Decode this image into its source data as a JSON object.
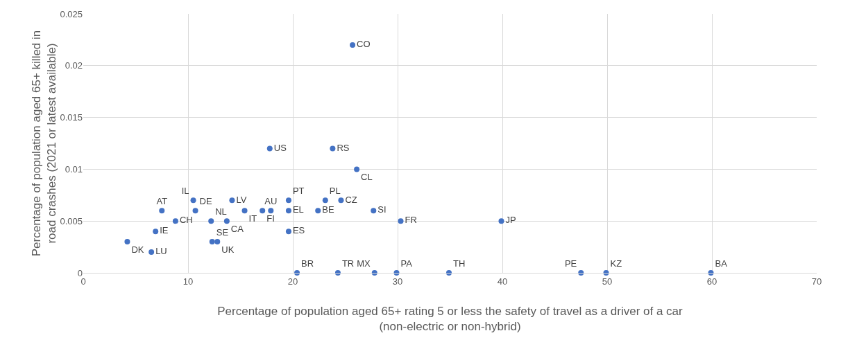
{
  "chart_data": {
    "type": "scatter",
    "xlabel": "Percentage of population aged 65+ rating 5 or less the safety of travel as a driver of a car (non-electric or non-hybrid)",
    "ylabel": "Percentage of population aged 65+ killed in road crashes (2021 or latest available)",
    "x": [
      25.7,
      17.8,
      23.8,
      26.1,
      7.5,
      10.5,
      10.7,
      8.8,
      6.9,
      4.2,
      6.5,
      12.2,
      13.7,
      14.2,
      15.4,
      17.1,
      17.9,
      19.6,
      19.6,
      19.6,
      22.4,
      23.1,
      24.6,
      27.7,
      30.3,
      39.9,
      12.3,
      12.8,
      20.4,
      24.3,
      27.8,
      29.9,
      34.9,
      47.5,
      49.9,
      59.9
    ],
    "values": [
      0.022,
      0.012,
      0.012,
      0.01,
      0.006,
      0.007,
      0.006,
      0.005,
      0.004,
      0.003,
      0.002,
      0.005,
      0.005,
      0.007,
      0.006,
      0.006,
      0.006,
      0.007,
      0.006,
      0.004,
      0.006,
      0.007,
      0.007,
      0.006,
      0.005,
      0.005,
      0.003,
      0.003,
      0,
      0,
      0,
      0,
      0,
      0,
      0,
      0
    ],
    "value_labels": [
      "CO",
      "US",
      "RS",
      "CL",
      "AT",
      "IL",
      "DE",
      "CH",
      "IE",
      "DK",
      "LU",
      "NL",
      "CA",
      "LV",
      "IT",
      "FI",
      "AU",
      "PT",
      "EL",
      "ES",
      "BE",
      "PL",
      "CZ",
      "SI",
      "FR",
      "JP",
      "SE",
      "UK",
      "BR",
      "TR",
      "MX",
      "PA",
      "TH",
      "PE",
      "KZ",
      "BA"
    ],
    "color": "#4472c4",
    "marker": "circle",
    "xlim": [
      0,
      70
    ],
    "xticks": [
      0,
      10,
      20,
      30,
      40,
      50,
      60,
      70
    ],
    "ylim": [
      0,
      0.025
    ],
    "yticks": [
      0,
      0.005,
      0.01,
      0.015,
      0.02,
      0.025
    ],
    "grid": true
  }
}
